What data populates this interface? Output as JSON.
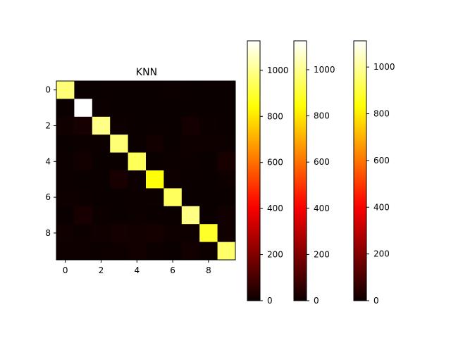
{
  "chart_data": {
    "type": "heatmap",
    "title": "KNN",
    "rows": 10,
    "cols": 10,
    "x_ticks": [
      0,
      2,
      4,
      6,
      8
    ],
    "y_ticks": [
      0,
      2,
      4,
      6,
      8
    ],
    "colormap": "hot",
    "vmin": 0,
    "vmax": 1125,
    "matrix": [
      [
        973,
        1,
        1,
        0,
        0,
        1,
        3,
        1,
        0,
        0
      ],
      [
        0,
        1128,
        3,
        1,
        0,
        0,
        1,
        0,
        1,
        1
      ],
      [
        11,
        25,
        990,
        2,
        1,
        0,
        1,
        16,
        4,
        1
      ],
      [
        0,
        3,
        3,
        972,
        1,
        13,
        1,
        7,
        6,
        4
      ],
      [
        2,
        12,
        0,
        0,
        939,
        0,
        4,
        2,
        1,
        22
      ],
      [
        4,
        1,
        0,
        23,
        2,
        850,
        6,
        1,
        0,
        5
      ],
      [
        5,
        3,
        0,
        0,
        3,
        2,
        945,
        0,
        0,
        0
      ],
      [
        0,
        24,
        4,
        0,
        4,
        0,
        0,
        987,
        0,
        9
      ],
      [
        9,
        2,
        11,
        16,
        13,
        18,
        5,
        5,
        886,
        9
      ],
      [
        5,
        5,
        2,
        8,
        12,
        3,
        1,
        12,
        4,
        957
      ]
    ],
    "colorbars": [
      {
        "vmin": 0,
        "vmax": 1128,
        "ticks": [
          0,
          200,
          400,
          600,
          800,
          1000
        ]
      },
      {
        "vmin": 0,
        "vmax": 1125,
        "ticks": [
          0,
          200,
          400,
          600,
          800,
          1000
        ]
      },
      {
        "vmin": 0,
        "vmax": 1112,
        "ticks": [
          0,
          200,
          400,
          600,
          800,
          1000
        ]
      }
    ]
  }
}
